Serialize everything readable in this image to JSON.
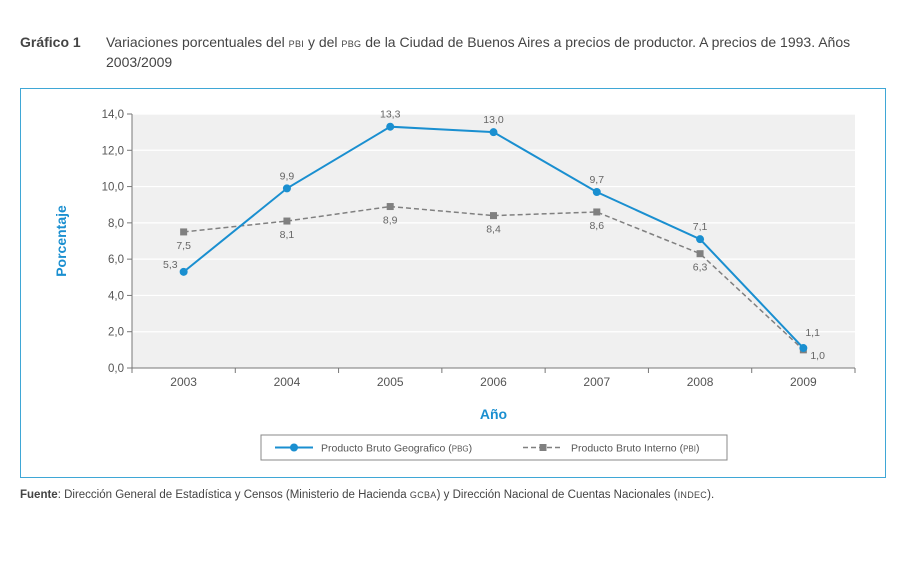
{
  "caption": {
    "label": "Gráfico 1",
    "text_pre": "Variaciones porcentuales del ",
    "abbr_pbi": "PBI",
    "text_mid": " y del ",
    "abbr_pbg": "PBG",
    "text_post": " de la Ciudad de Buenos Aires a precios de productor. A precios de 1993. Años 2003/2009"
  },
  "source": {
    "label": "Fuente",
    "text_a": ": Dirección General de Estadística y Censos (Ministerio de Hacienda ",
    "abbr_gcba": "GCBA",
    "text_b": ") y Dirección Nacional de Cuentas Nacionales (",
    "abbr_indec": "INDEC",
    "text_c": ")."
  },
  "colors": {
    "pbg": "#1a8fd0",
    "pbi": "#808080",
    "axis_title": "#1a8fd0",
    "frame": "#3fa7d6",
    "plot_bg": "#f0f0f0",
    "grid": "#ffffff"
  },
  "chart_data": {
    "type": "line",
    "title": "",
    "xlabel": "Año",
    "ylabel": "Porcentaje",
    "categories": [
      "2003",
      "2004",
      "2005",
      "2006",
      "2007",
      "2008",
      "2009"
    ],
    "ylim": [
      0,
      14
    ],
    "yticks": [
      "0,0",
      "2,0",
      "4,0",
      "6,0",
      "8,0",
      "10,0",
      "12,0",
      "14,0"
    ],
    "grid": true,
    "legend_position": "bottom-center",
    "series": [
      {
        "name": "Producto Bruto Geografico",
        "name_abbr": "PBG",
        "marker": "circle",
        "style": "solid",
        "values": [
          5.3,
          9.9,
          13.3,
          13.0,
          9.7,
          7.1,
          1.1
        ],
        "labels": [
          "5,3",
          "9,9",
          "13,3",
          "13,0",
          "9,7",
          "7,1",
          "1,1"
        ]
      },
      {
        "name": "Producto Bruto Interno",
        "name_abbr": "PBI",
        "marker": "square",
        "style": "dashed",
        "values": [
          7.5,
          8.1,
          8.9,
          8.4,
          8.6,
          6.3,
          1.0
        ],
        "labels": [
          "7,5",
          "8,1",
          "8,9",
          "8,4",
          "8,6",
          "6,3",
          "1,0"
        ]
      }
    ]
  }
}
